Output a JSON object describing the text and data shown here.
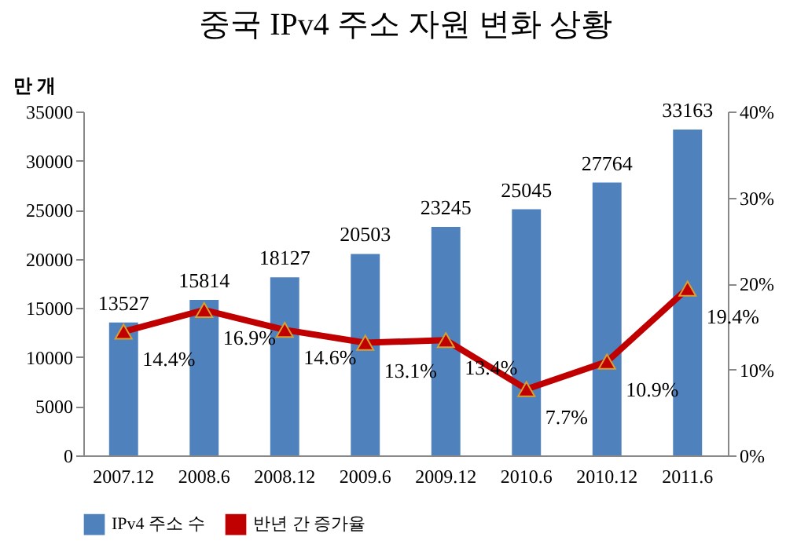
{
  "chart_data": {
    "type": "bar",
    "title": "중국 IPv4 주소 자원 변화 상황",
    "ylabel": "만 개",
    "categories": [
      "2007.12",
      "2008.6",
      "2008.12",
      "2009.6",
      "2009.12",
      "2010.6",
      "2010.12",
      "2011.6"
    ],
    "series": [
      {
        "name": "IPv4 주소 수",
        "color": "#4f81bd",
        "values": [
          13527,
          15814,
          18127,
          20503,
          23245,
          25045,
          27764,
          33163
        ]
      },
      {
        "name": "반년 간 증가율",
        "type": "line",
        "axis": "y2",
        "color": "#c00000",
        "marker": "triangle",
        "values": [
          14.4,
          16.9,
          14.6,
          13.1,
          13.4,
          7.7,
          10.9,
          19.4
        ],
        "value_labels": [
          "14.4%",
          "16.9%",
          "14.6%",
          "13.1%",
          "13.4%",
          "7.7%",
          "10.9%",
          "19.4%"
        ]
      }
    ],
    "ylim": [
      0,
      35000
    ],
    "yticks": [
      0,
      5000,
      10000,
      15000,
      20000,
      25000,
      30000,
      35000
    ],
    "y2lim": [
      0,
      40
    ],
    "y2ticks": [
      {
        "value": 0,
        "label": "0%"
      },
      {
        "value": 10,
        "label": "10%"
      },
      {
        "value": 20,
        "label": "20%"
      },
      {
        "value": 30,
        "label": "30%"
      },
      {
        "value": 40,
        "label": "40%"
      }
    ],
    "data_labels": true,
    "grid": false,
    "legend": "bottom"
  }
}
